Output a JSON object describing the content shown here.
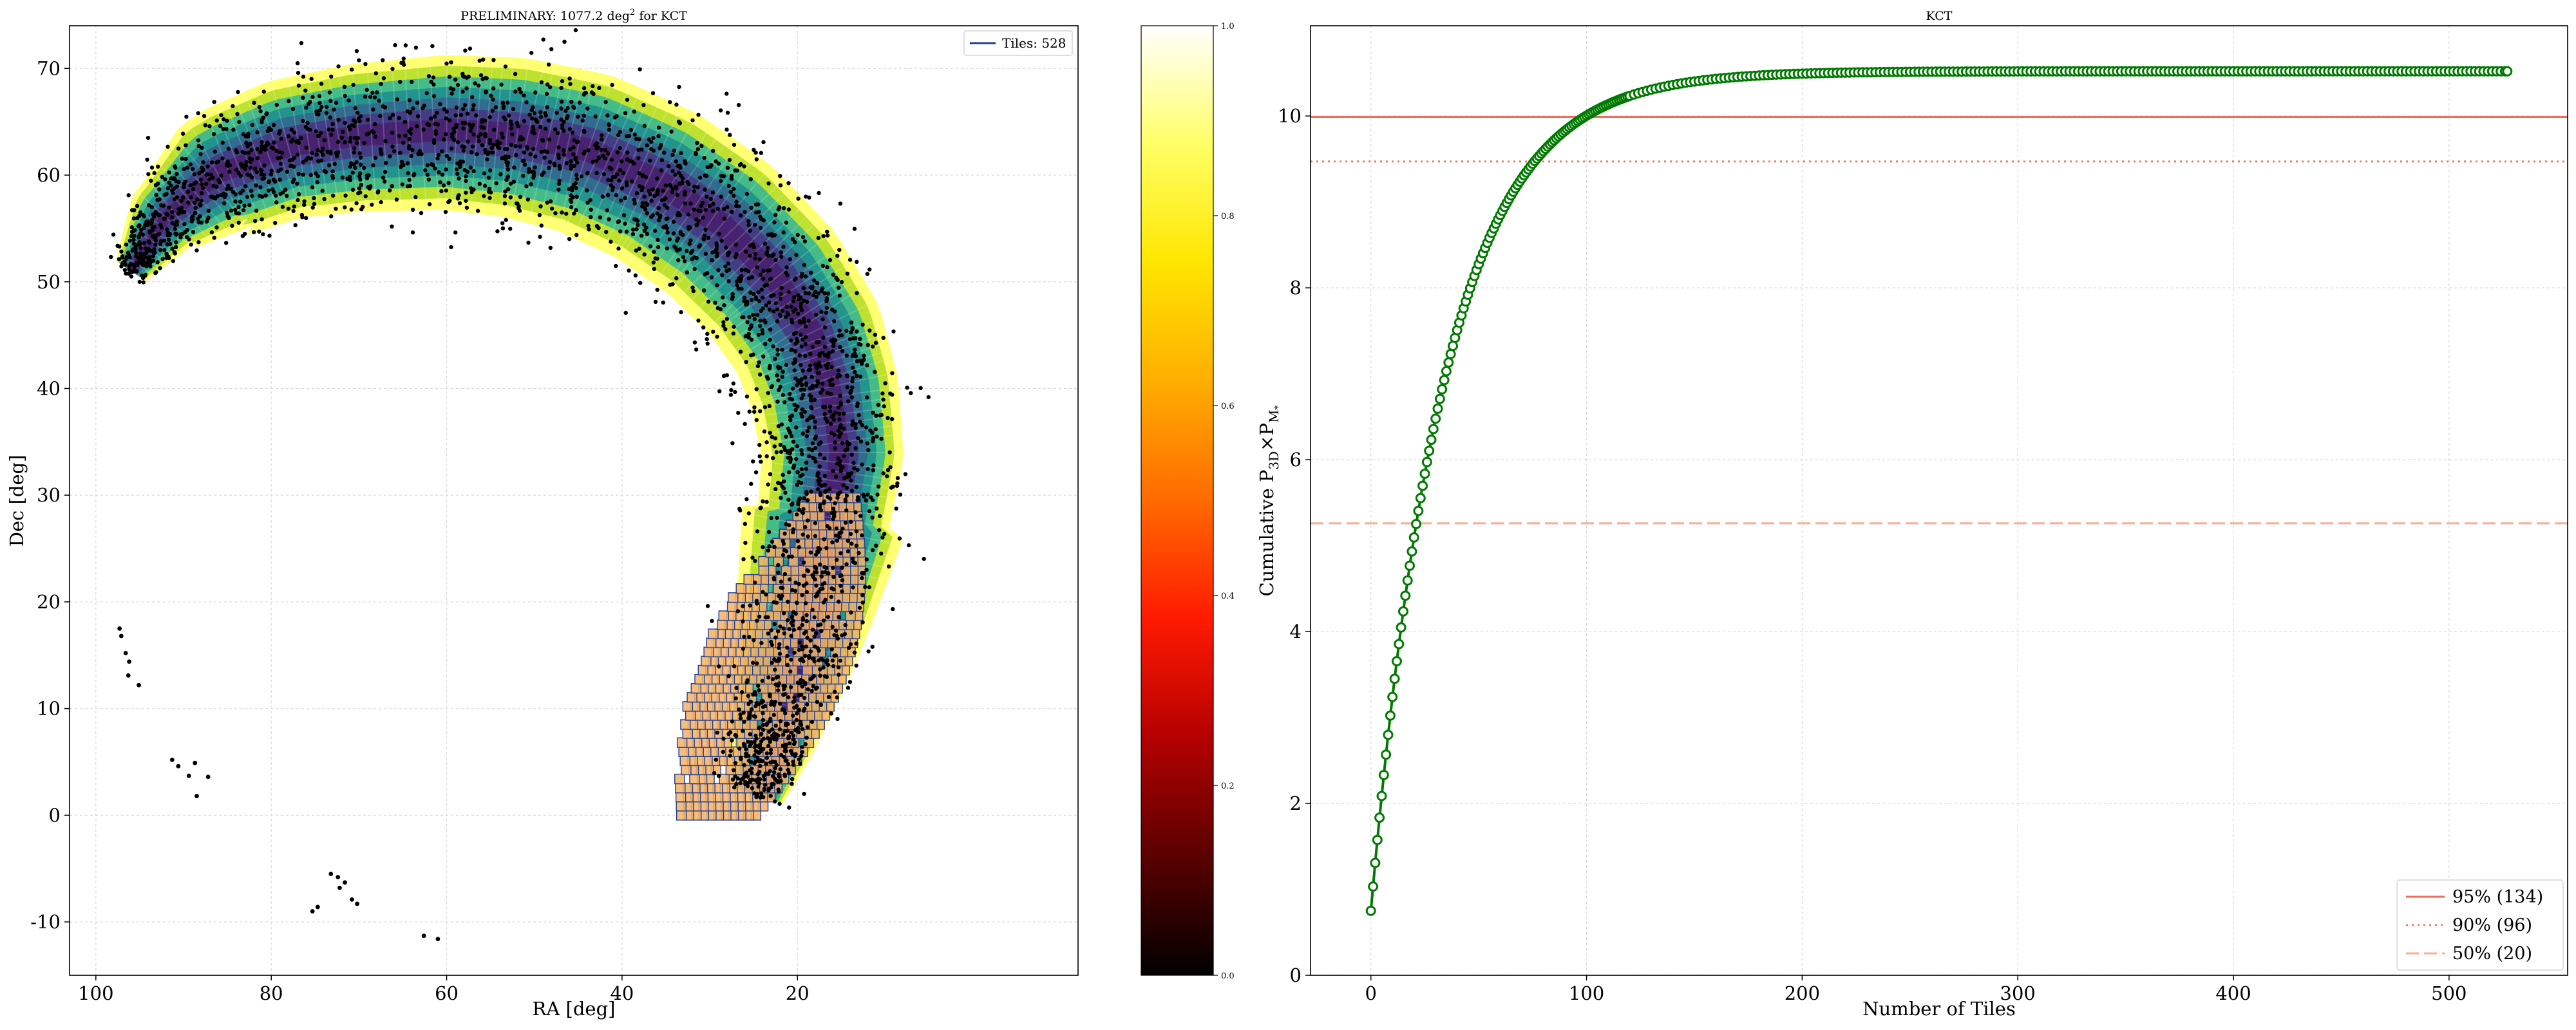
{
  "chart_data": [
    {
      "type": "scatter",
      "title": "PRELIMINARY: 1077.2 deg² for KCT",
      "title_main": "PRELIMINARY: 1077.2 deg",
      "title_sup": "2",
      "title_tail": " for KCT",
      "xlabel": "RA [deg]",
      "ylabel": "Dec [deg]",
      "xlim": [
        103,
        -12
      ],
      "ylim": [
        -15,
        74
      ],
      "x_ticks": [
        100,
        80,
        60,
        40,
        20
      ],
      "y_ticks": [
        -10,
        0,
        10,
        20,
        30,
        40,
        50,
        60,
        70
      ],
      "x_invert": true,
      "grid": true,
      "legend": {
        "placement": "top-right",
        "entries": [
          {
            "label": "Tiles: 528",
            "color": "#1f3f8f"
          }
        ]
      },
      "skymap_band": {
        "description": "probability band arc (viridis/yellow)",
        "colors": [
          "#ffff66",
          "#b8de29",
          "#3bb88f",
          "#21908d",
          "#31688e",
          "#443983",
          "#481f70"
        ]
      },
      "tiles": {
        "count": 528,
        "ra_range": [
          12,
          29
        ],
        "dec_range": [
          0,
          30
        ],
        "face_color": "#f4b16a",
        "edge_color": "#1f3f8f"
      },
      "galaxies": {
        "color": "#000000",
        "isolated": [
          [
            97.3,
            17.5
          ],
          [
            97.1,
            16.8
          ],
          [
            96.6,
            15.2
          ],
          [
            96.2,
            14.4
          ],
          [
            96.3,
            13.1
          ],
          [
            95.1,
            12.2
          ],
          [
            91.3,
            5.2
          ],
          [
            90.6,
            4.6
          ],
          [
            88.7,
            4.9
          ],
          [
            89.4,
            3.7
          ],
          [
            87.2,
            3.6
          ],
          [
            88.5,
            1.8
          ],
          [
            73.2,
            -5.5
          ],
          [
            72.4,
            -5.8
          ],
          [
            71.6,
            -6.3
          ],
          [
            72.2,
            -6.8
          ],
          [
            70.8,
            -7.9
          ],
          [
            70.2,
            -8.3
          ],
          [
            74.7,
            -8.6
          ],
          [
            75.3,
            -9.0
          ],
          [
            62.6,
            -11.3
          ],
          [
            61.0,
            -11.6
          ]
        ]
      },
      "colorbar": {
        "ticks": [
          "0.0",
          "0.2",
          "0.4",
          "0.6",
          "0.8",
          "1.0"
        ],
        "colormap": [
          "#000000",
          "#5a0000",
          "#b40000",
          "#ff1a00",
          "#ff6a00",
          "#ffae00",
          "#ffe600",
          "#ffff66",
          "#ffffff"
        ]
      }
    },
    {
      "type": "line",
      "title": "KCT",
      "xlabel": "Number of Tiles",
      "ylabel": "Cumulative P",
      "ylabel_sub1": "3D",
      "ylabel_mid": "×P",
      "ylabel_sub2": "M",
      "ylabel_sub3": "*",
      "xlim": [
        -28,
        555
      ],
      "ylim": [
        0,
        11.05
      ],
      "x_ticks": [
        0,
        100,
        200,
        300,
        400,
        500
      ],
      "y_ticks": [
        0,
        2,
        4,
        6,
        8,
        10
      ],
      "grid": true,
      "series": [
        {
          "color": "#007a00",
          "n_tiles": 528,
          "final_value": 10.52,
          "first_value": 0.75
        }
      ],
      "reference_lines": [
        {
          "label": "95% (134)",
          "value": 9.99,
          "style": "solid",
          "color": "#f26b5b"
        },
        {
          "label": "90% (96)",
          "value": 9.47,
          "style": "dotted",
          "color": "#f07c5c"
        },
        {
          "label": "50% (20)",
          "value": 5.26,
          "style": "dashed",
          "color": "#f8ad95"
        }
      ],
      "legend": {
        "placement": "bottom-right"
      }
    }
  ]
}
